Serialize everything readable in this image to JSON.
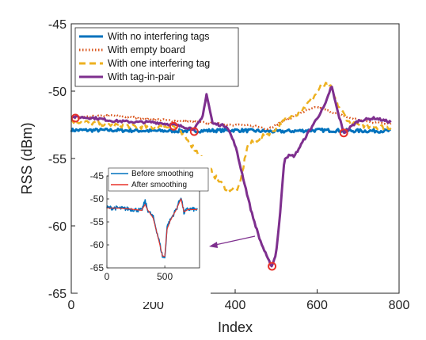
{
  "chart_data": {
    "type": "line",
    "xlabel": "Index",
    "ylabel": "RSS (dBm)",
    "xlim": [
      0,
      800
    ],
    "ylim": [
      -65,
      -45
    ],
    "xticks": [
      0,
      200,
      400,
      600,
      800
    ],
    "yticks": [
      -45,
      -50,
      -55,
      -60,
      -65
    ],
    "grid": false,
    "legend_position": "top-left",
    "series": [
      {
        "name": "With no interfering tags",
        "color": "#0072bd",
        "style": "solid",
        "points": [
          [
            0,
            -52.9
          ],
          [
            100,
            -52.9
          ],
          [
            200,
            -52.95
          ],
          [
            300,
            -52.95
          ],
          [
            400,
            -52.9
          ],
          [
            500,
            -53.0
          ],
          [
            600,
            -52.9
          ],
          [
            700,
            -52.95
          ],
          [
            780,
            -52.95
          ]
        ]
      },
      {
        "name": "With empty board",
        "color": "#d95319",
        "style": "dotted",
        "points": [
          [
            0,
            -52.0
          ],
          [
            100,
            -51.8
          ],
          [
            200,
            -52.1
          ],
          [
            300,
            -52.3
          ],
          [
            400,
            -52.5
          ],
          [
            450,
            -52.6
          ],
          [
            480,
            -52.8
          ],
          [
            520,
            -52.2
          ],
          [
            560,
            -51.6
          ],
          [
            600,
            -51.2
          ],
          [
            640,
            -51.6
          ],
          [
            680,
            -52.0
          ],
          [
            730,
            -52.3
          ],
          [
            780,
            -52.4
          ]
        ]
      },
      {
        "name": "With one interfering tag",
        "color": "#edb120",
        "style": "dashed",
        "points": [
          [
            0,
            -52.2
          ],
          [
            100,
            -52.5
          ],
          [
            200,
            -52.7
          ],
          [
            250,
            -52.6
          ],
          [
            280,
            -53.5
          ],
          [
            320,
            -55.0
          ],
          [
            350,
            -56.3
          ],
          [
            380,
            -57.3
          ],
          [
            410,
            -57.2
          ],
          [
            430,
            -54.0
          ],
          [
            460,
            -53.5
          ],
          [
            490,
            -53.0
          ],
          [
            520,
            -52.2
          ],
          [
            560,
            -51.5
          ],
          [
            590,
            -50.5
          ],
          [
            610,
            -49.6
          ],
          [
            630,
            -49.5
          ],
          [
            650,
            -51.0
          ],
          [
            680,
            -52.4
          ],
          [
            720,
            -52.6
          ],
          [
            780,
            -52.7
          ]
        ]
      },
      {
        "name": "With tag-in-pair",
        "color": "#7e2f8e",
        "style": "solid",
        "points": [
          [
            0,
            -51.9
          ],
          [
            60,
            -52.0
          ],
          [
            100,
            -52.2
          ],
          [
            160,
            -52.3
          ],
          [
            200,
            -52.3
          ],
          [
            250,
            -52.5
          ],
          [
            300,
            -52.8
          ],
          [
            320,
            -52.0
          ],
          [
            330,
            -50.2
          ],
          [
            345,
            -52.4
          ],
          [
            380,
            -52.6
          ],
          [
            400,
            -54.0
          ],
          [
            420,
            -56.5
          ],
          [
            440,
            -59.0
          ],
          [
            460,
            -61.0
          ],
          [
            480,
            -62.5
          ],
          [
            490,
            -63.0
          ],
          [
            500,
            -62.0
          ],
          [
            510,
            -59.0
          ],
          [
            520,
            -55.0
          ],
          [
            530,
            -54.8
          ],
          [
            545,
            -54.8
          ],
          [
            570,
            -53.5
          ],
          [
            600,
            -52.0
          ],
          [
            620,
            -51.0
          ],
          [
            635,
            -49.6
          ],
          [
            650,
            -51.5
          ],
          [
            665,
            -53.1
          ],
          [
            700,
            -52.2
          ],
          [
            740,
            -52.0
          ],
          [
            780,
            -52.3
          ]
        ]
      }
    ],
    "markers": [
      [
        10,
        -52.0
      ],
      [
        250,
        -52.6
      ],
      [
        300,
        -53.0
      ],
      [
        490,
        -63.0
      ],
      [
        665,
        -53.1
      ]
    ],
    "inset": {
      "xlim": [
        0,
        800
      ],
      "ylim": [
        -65,
        -45
      ],
      "xticks": [
        0,
        500
      ],
      "yticks": [
        -45,
        -50,
        -55,
        -60,
        -65
      ],
      "legend_position": "top",
      "series": [
        {
          "name": "Before smoothing",
          "color": "#0072bd",
          "points": [
            [
              0,
              -51.9
            ],
            [
              100,
              -52.0
            ],
            [
              200,
              -52.2
            ],
            [
              300,
              -52.5
            ],
            [
              330,
              -50.5
            ],
            [
              350,
              -52.3
            ],
            [
              400,
              -54.0
            ],
            [
              450,
              -59.0
            ],
            [
              480,
              -62.5
            ],
            [
              500,
              -62.8
            ],
            [
              520,
              -56.0
            ],
            [
              550,
              -54.5
            ],
            [
              600,
              -52.2
            ],
            [
              640,
              -49.5
            ],
            [
              665,
              -53.0
            ],
            [
              700,
              -52.2
            ],
            [
              780,
              -52.3
            ]
          ]
        },
        {
          "name": "After smoothing",
          "color": "#e8322a",
          "points": [
            [
              0,
              -52.0
            ],
            [
              100,
              -52.0
            ],
            [
              200,
              -52.2
            ],
            [
              300,
              -52.5
            ],
            [
              330,
              -51.2
            ],
            [
              350,
              -52.3
            ],
            [
              400,
              -54.2
            ],
            [
              450,
              -59.2
            ],
            [
              480,
              -62.4
            ],
            [
              500,
              -62.5
            ],
            [
              520,
              -56.5
            ],
            [
              550,
              -54.6
            ],
            [
              600,
              -52.3
            ],
            [
              640,
              -50.0
            ],
            [
              665,
              -52.8
            ],
            [
              700,
              -52.3
            ],
            [
              780,
              -52.3
            ]
          ]
        }
      ]
    }
  }
}
